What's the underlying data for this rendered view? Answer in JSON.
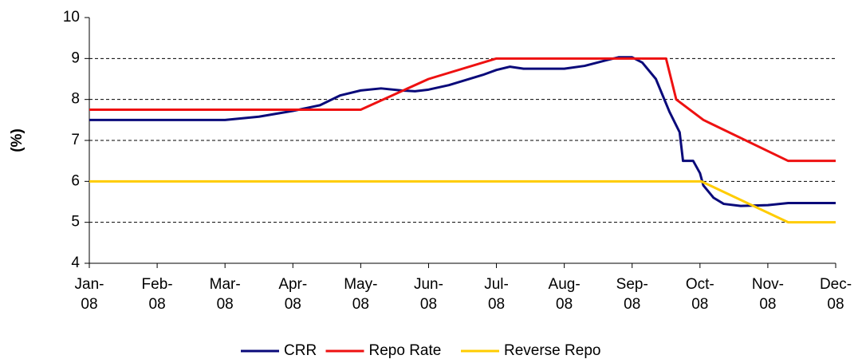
{
  "chart_data": {
    "type": "line",
    "y_label": "(%)",
    "xlim": [
      0,
      11
    ],
    "xticks": [
      {
        "value": 0,
        "label": "Jan-\n08"
      },
      {
        "value": 1,
        "label": "Feb-\n08"
      },
      {
        "value": 2,
        "label": "Mar-\n08"
      },
      {
        "value": 3,
        "label": "Apr-\n08"
      },
      {
        "value": 4,
        "label": "May-\n08"
      },
      {
        "value": 5,
        "label": "Jun-\n08"
      },
      {
        "value": 6,
        "label": "Jul-\n08"
      },
      {
        "value": 7,
        "label": "Aug-\n08"
      },
      {
        "value": 8,
        "label": "Sep-\n08"
      },
      {
        "value": 9,
        "label": "Oct-\n08"
      },
      {
        "value": 10,
        "label": "Nov-\n08"
      },
      {
        "value": 11,
        "label": "Dec-\n08"
      }
    ],
    "ylim": [
      4,
      10
    ],
    "yticks": [
      4,
      5,
      6,
      7,
      8,
      9,
      10
    ],
    "grid": true,
    "legend": "bottom",
    "series": [
      {
        "name": "CRR",
        "color": "#0a0a7a",
        "x": [
          0,
          2,
          2.5,
          3,
          3.4,
          3.7,
          4,
          4.3,
          4.6,
          4.8,
          5,
          5.3,
          5.8,
          6,
          6.2,
          6.4,
          7,
          7.3,
          7.6,
          7.8,
          8,
          8.15,
          8.35,
          8.55,
          8.7,
          8.75,
          8.9,
          9,
          9.05,
          9.2,
          9.35,
          9.6,
          10,
          10.3,
          11
        ],
        "values": [
          7.5,
          7.5,
          7.58,
          7.72,
          7.86,
          8.1,
          8.22,
          8.27,
          8.22,
          8.2,
          8.24,
          8.35,
          8.6,
          8.72,
          8.8,
          8.75,
          8.75,
          8.82,
          8.95,
          9.03,
          9.03,
          8.9,
          8.5,
          7.7,
          7.2,
          6.5,
          6.5,
          6.2,
          5.9,
          5.6,
          5.45,
          5.4,
          5.42,
          5.47,
          5.47
        ]
      },
      {
        "name": "Repo Rate",
        "color": "#ee1111",
        "x": [
          0,
          4,
          5,
          6,
          8.5,
          8.65,
          9.05,
          10.3,
          11
        ],
        "values": [
          7.75,
          7.75,
          8.5,
          9,
          9,
          8,
          7.5,
          6.5,
          6.5
        ]
      },
      {
        "name": "Reverse Repo",
        "color": "#ffcc00",
        "x": [
          0,
          9.02,
          10.3,
          11
        ],
        "values": [
          6,
          6,
          5,
          5
        ]
      }
    ]
  }
}
